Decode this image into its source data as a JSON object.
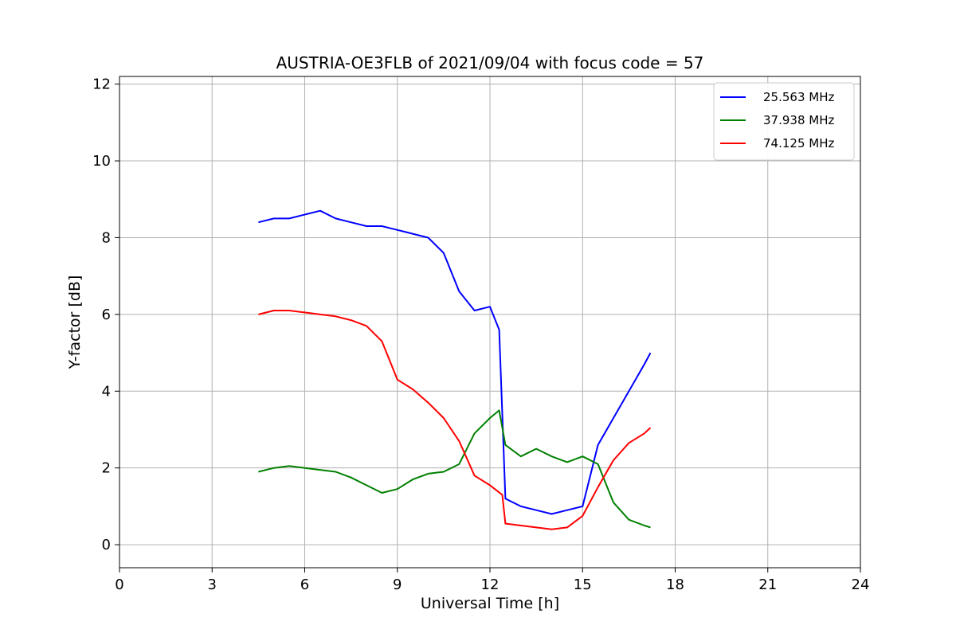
{
  "chart_data": {
    "type": "line",
    "title": "AUSTRIA-OE3FLB of 2021/09/04 with focus code = 57",
    "xlabel": "Universal Time [h]",
    "ylabel": "Y-factor [dB]",
    "xlim": [
      0,
      24
    ],
    "ylim": [
      -0.6,
      12.2
    ],
    "xticks": [
      0,
      3,
      6,
      9,
      12,
      15,
      18,
      21,
      24
    ],
    "yticks": [
      0,
      2,
      4,
      6,
      8,
      10,
      12
    ],
    "grid": true,
    "legend_position": "top-right",
    "series": [
      {
        "name": "25.563 MHz",
        "color": "#0000ff",
        "x": [
          4.5,
          5.0,
          5.5,
          6.0,
          6.5,
          7.0,
          7.5,
          8.0,
          8.5,
          9.0,
          9.5,
          10.0,
          10.5,
          11.0,
          11.5,
          12.0,
          12.3,
          12.5,
          13.0,
          13.5,
          14.0,
          14.5,
          15.0,
          15.5,
          16.0,
          16.5,
          17.0,
          17.2
        ],
        "y": [
          8.4,
          8.5,
          8.5,
          8.6,
          8.7,
          8.5,
          8.4,
          8.3,
          8.3,
          8.2,
          8.1,
          8.0,
          7.6,
          6.6,
          6.1,
          6.2,
          5.6,
          1.2,
          1.0,
          0.9,
          0.8,
          0.9,
          1.0,
          2.6,
          3.3,
          4.0,
          4.7,
          5.0
        ]
      },
      {
        "name": "37.938 MHz",
        "color": "#008000",
        "x": [
          4.5,
          5.0,
          5.5,
          6.0,
          6.5,
          7.0,
          7.5,
          8.0,
          8.5,
          9.0,
          9.5,
          10.0,
          10.5,
          11.0,
          11.5,
          12.0,
          12.3,
          12.5,
          13.0,
          13.5,
          14.0,
          14.5,
          15.0,
          15.5,
          16.0,
          16.5,
          17.0,
          17.2
        ],
        "y": [
          1.9,
          2.0,
          2.05,
          2.0,
          1.95,
          1.9,
          1.75,
          1.55,
          1.35,
          1.45,
          1.7,
          1.85,
          1.9,
          2.1,
          2.9,
          3.3,
          3.5,
          2.6,
          2.3,
          2.5,
          2.3,
          2.15,
          2.3,
          2.1,
          1.1,
          0.65,
          0.5,
          0.45
        ]
      },
      {
        "name": "74.125 MHz",
        "color": "#ff0000",
        "x": [
          4.5,
          5.0,
          5.5,
          6.0,
          6.5,
          7.0,
          7.5,
          8.0,
          8.5,
          9.0,
          9.5,
          10.0,
          10.5,
          11.0,
          11.5,
          12.0,
          12.4,
          12.5,
          13.0,
          13.5,
          14.0,
          14.5,
          15.0,
          15.5,
          16.0,
          16.5,
          17.0,
          17.2
        ],
        "y": [
          6.0,
          6.1,
          6.1,
          6.05,
          6.0,
          5.95,
          5.85,
          5.7,
          5.3,
          4.3,
          4.05,
          3.7,
          3.3,
          2.7,
          1.8,
          1.55,
          1.3,
          0.55,
          0.5,
          0.45,
          0.4,
          0.45,
          0.75,
          1.5,
          2.2,
          2.65,
          2.9,
          3.05
        ]
      }
    ]
  }
}
